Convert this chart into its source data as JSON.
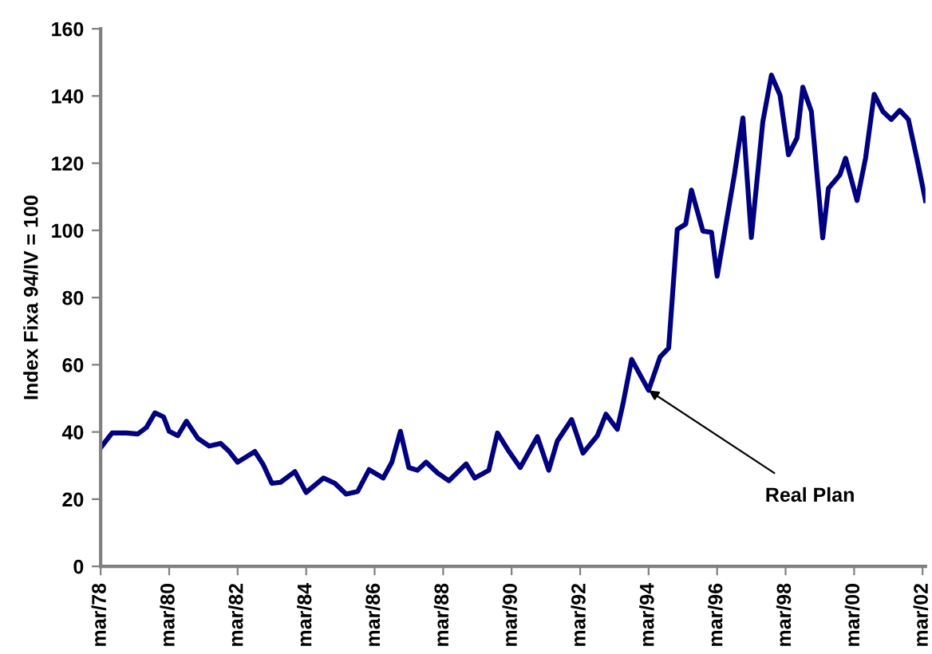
{
  "chart_data": {
    "type": "line",
    "ylabel": "Index Fixa 94/IV = 100",
    "x": [
      "1978-03",
      "1978-07",
      "1978-12",
      "1979-04",
      "1979-07",
      "1979-10",
      "1980-01",
      "1980-03",
      "1980-06",
      "1980-09",
      "1981-01",
      "1981-05",
      "1981-09",
      "1981-12",
      "1982-03",
      "1982-09",
      "1982-12",
      "1983-03",
      "1983-06",
      "1983-11",
      "1984-03",
      "1984-09",
      "1985-01",
      "1985-05",
      "1985-09",
      "1986-01",
      "1986-06",
      "1986-09",
      "1986-12",
      "1987-03",
      "1987-06",
      "1987-09",
      "1988-01",
      "1988-05",
      "1988-11",
      "1989-02",
      "1989-07",
      "1989-10",
      "1990-02",
      "1990-06",
      "1990-12",
      "1991-04",
      "1991-07",
      "1991-12",
      "1992-04",
      "1992-09",
      "1992-12",
      "1993-04",
      "1993-06",
      "1993-09",
      "1994-03",
      "1994-07",
      "1994-10",
      "1995-01",
      "1995-04",
      "1995-06",
      "1995-10",
      "1996-01",
      "1996-03",
      "1996-09",
      "1996-12",
      "1997-03",
      "1997-07",
      "1997-10",
      "1998-01",
      "1998-04",
      "1998-07",
      "1998-09",
      "1998-12",
      "1999-04",
      "1999-06",
      "1999-10",
      "1999-12",
      "2000-04",
      "2000-07",
      "2000-10",
      "2001-01",
      "2001-04",
      "2001-07",
      "2001-10",
      "2002-01",
      "2002-04"
    ],
    "series": [
      {
        "color": "#000080",
        "values": [
          35.3,
          39.7,
          39.7,
          39.4,
          41.3,
          45.7,
          44.5,
          40.2,
          38.9,
          43.2,
          38.1,
          35.8,
          36.6,
          34.2,
          31.0,
          34.2,
          30.2,
          24.7,
          25.0,
          28.2,
          22.0,
          26.3,
          24.7,
          21.5,
          22.3,
          28.8,
          26.3,
          31.0,
          40.2,
          29.4,
          28.6,
          31.0,
          27.8,
          25.5,
          30.5,
          26.3,
          28.6,
          39.7,
          34.2,
          29.4,
          38.6,
          28.6,
          37.3,
          43.7,
          33.7,
          38.9,
          45.3,
          40.8,
          48.4,
          61.6,
          52.4,
          62.3,
          65.0,
          100.3,
          101.9,
          112.0,
          99.8,
          99.4,
          86.4,
          116.5,
          133.5,
          97.9,
          132.3,
          146.2,
          140.2,
          122.5,
          127.5,
          142.6,
          135.4,
          97.8,
          112.5,
          116.5,
          121.5,
          108.9,
          121.5,
          140.5,
          135.4,
          133.0,
          135.7,
          133.0,
          121.2,
          108.9
        ]
      }
    ],
    "xlim": [
      "1978-03",
      "2002-04"
    ],
    "xticks": [
      {
        "value": "1978-03",
        "label": "mar/78"
      },
      {
        "value": "1980-03",
        "label": "mar/80"
      },
      {
        "value": "1982-03",
        "label": "mar/82"
      },
      {
        "value": "1984-03",
        "label": "mar/84"
      },
      {
        "value": "1986-03",
        "label": "mar/86"
      },
      {
        "value": "1988-03",
        "label": "mar/88"
      },
      {
        "value": "1990-03",
        "label": "mar/90"
      },
      {
        "value": "1992-03",
        "label": "mar/92"
      },
      {
        "value": "1994-03",
        "label": "mar/94"
      },
      {
        "value": "1996-03",
        "label": "mar/96"
      },
      {
        "value": "1998-03",
        "label": "mar/98"
      },
      {
        "value": "2000-03",
        "label": "mar/00"
      },
      {
        "value": "2002-03",
        "label": "mar/02"
      }
    ],
    "ylim": [
      0,
      160
    ],
    "yticks": [
      0,
      20,
      40,
      60,
      80,
      100,
      120,
      140,
      160
    ],
    "grid": false,
    "legend": false,
    "marker": "none",
    "line_style": "solid",
    "annotations": [
      {
        "text": "Real Plan",
        "x": "1994-03",
        "y": 52.4
      }
    ]
  }
}
